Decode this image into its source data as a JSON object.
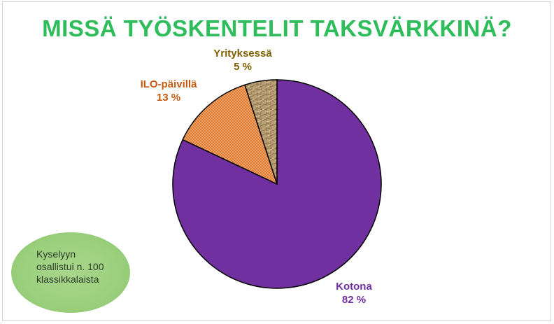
{
  "title": "MISSÄ TYÖSKENTELIT TAKSVÄRKKINÄ?",
  "note": "Kyselyyn\nosallistui n. 100\nklassikkalaista",
  "colors": {
    "title": "#2ebd5a",
    "kotona": "#7030a0",
    "ilo": "#c55a11",
    "yrityksessa": "#7f6000",
    "note_bg": "#9acf7c"
  },
  "chart_data": {
    "type": "pie",
    "title": "MISSÄ TYÖSKENTELIT TAKSVÄRKKINÄ?",
    "start_angle_deg": 0,
    "direction": "clockwise",
    "slices": [
      {
        "label": "Kotona",
        "value": 82,
        "value_label": "82 %",
        "color": "#7030a0"
      },
      {
        "label": "ILO-päivillä",
        "value": 13,
        "value_label": "13 %",
        "color": "#c55a11"
      },
      {
        "label": "Yrityksessä",
        "value": 5,
        "value_label": "5 %",
        "color": "#7f6000"
      }
    ]
  }
}
